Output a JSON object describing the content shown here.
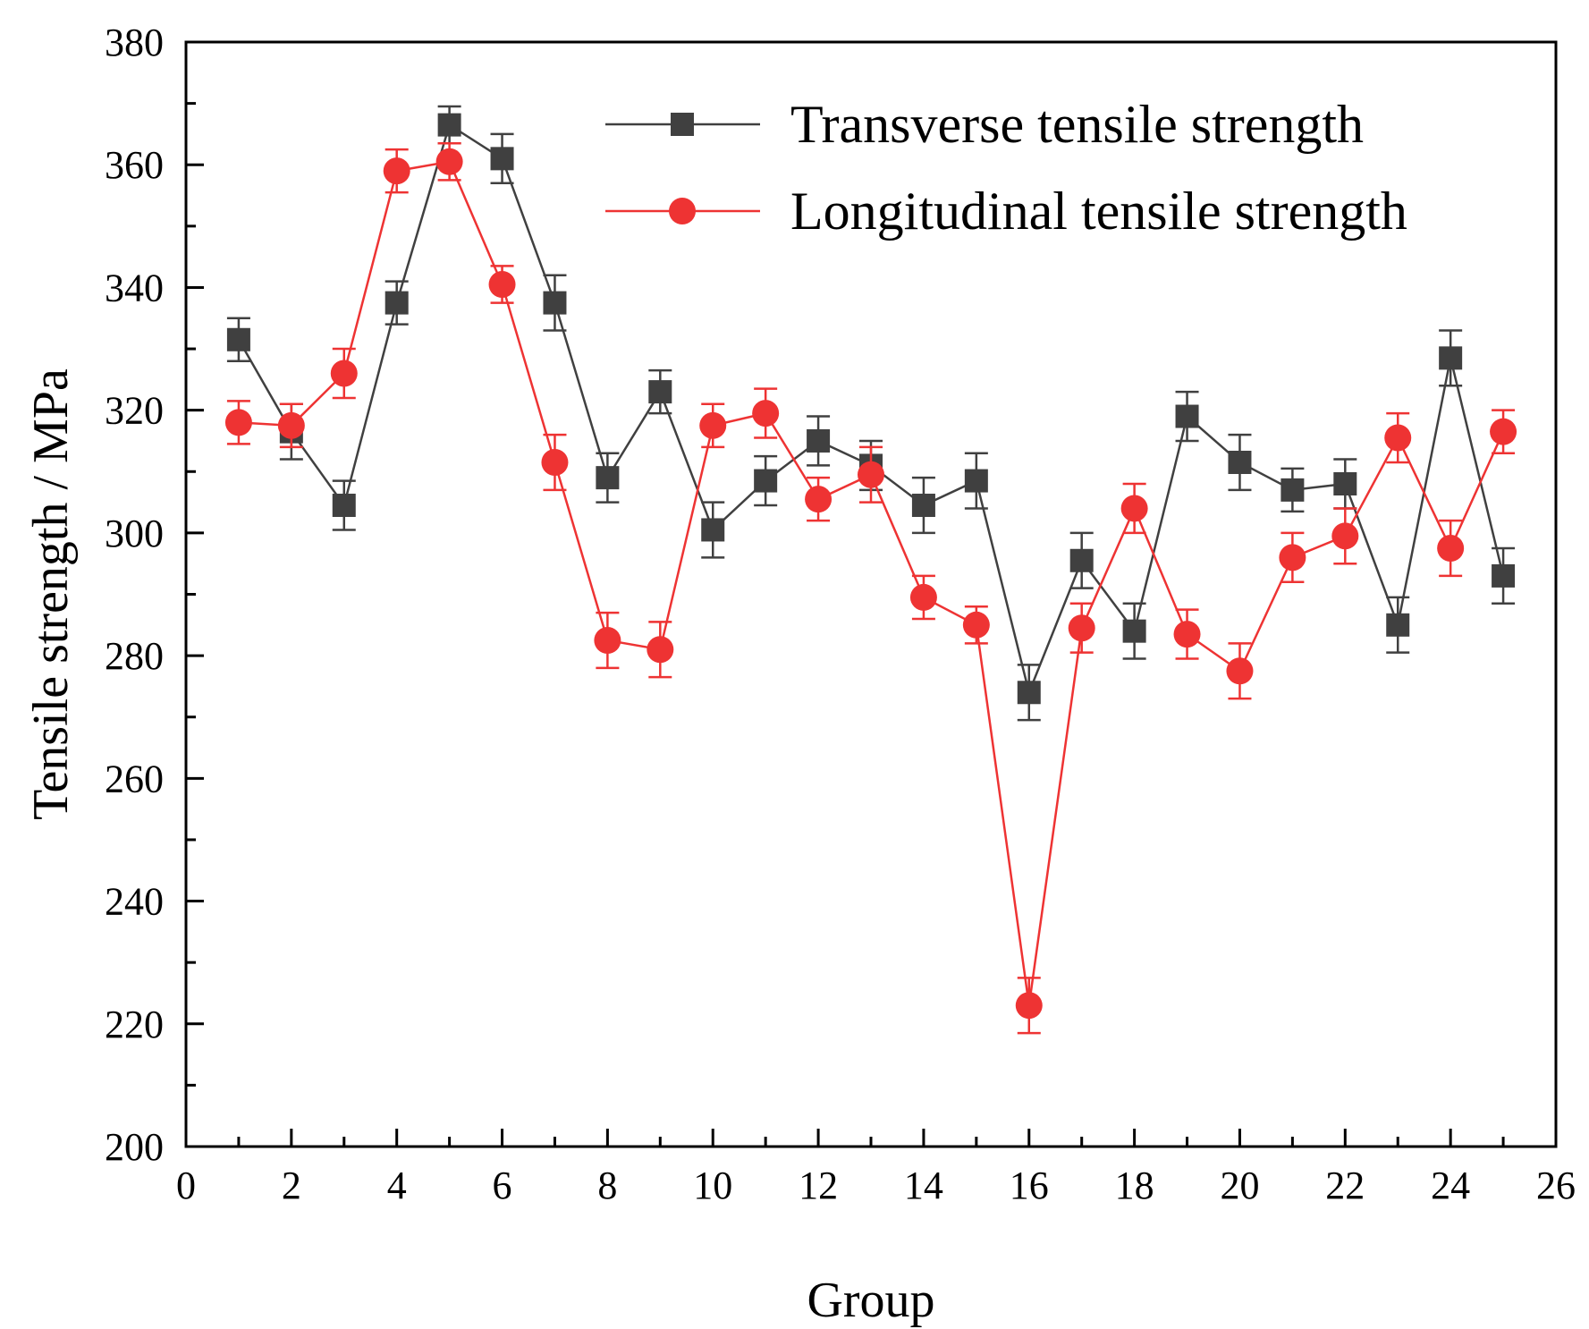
{
  "chart_data": {
    "type": "line",
    "xlabel": "Group",
    "ylabel": "Tensile strength / MPa",
    "xlim": [
      0,
      26
    ],
    "ylim": [
      200,
      380
    ],
    "x_major_ticks": [
      0,
      2,
      4,
      6,
      8,
      10,
      12,
      14,
      16,
      18,
      20,
      22,
      24,
      26
    ],
    "y_major_ticks": [
      200,
      220,
      240,
      260,
      280,
      300,
      320,
      340,
      360,
      380
    ],
    "x_tick_labels": [
      "0",
      "2",
      "4",
      "6",
      "8",
      "10",
      "12",
      "14",
      "16",
      "18",
      "20",
      "22",
      "24",
      "26"
    ],
    "y_tick_labels": [
      "200",
      "220",
      "240",
      "260",
      "280",
      "300",
      "320",
      "340",
      "360",
      "380"
    ],
    "grid": false,
    "legend_position": "top-right",
    "x": [
      1,
      2,
      3,
      4,
      5,
      6,
      7,
      8,
      9,
      10,
      11,
      12,
      13,
      14,
      15,
      16,
      17,
      18,
      19,
      20,
      21,
      22,
      23,
      24,
      25
    ],
    "series": [
      {
        "name": "Transverse tensile strength",
        "color": "#404040",
        "marker": "square",
        "values": [
          331.5,
          316.5,
          304.5,
          337.5,
          366.5,
          361,
          337.5,
          309,
          323,
          300.5,
          308.5,
          315,
          311,
          304.5,
          308.5,
          274,
          295.5,
          284,
          319,
          311.5,
          307,
          308,
          285,
          328.5,
          293
        ],
        "errors": [
          3.5,
          4.5,
          4,
          3.5,
          3,
          4,
          4.5,
          4,
          3.5,
          4.5,
          4,
          4,
          4,
          4.5,
          4.5,
          4.5,
          4.5,
          4.5,
          4,
          4.5,
          3.5,
          4,
          4.5,
          4.5,
          4.5
        ]
      },
      {
        "name": "Longitudinal tensile strength",
        "color": "#ee3333",
        "marker": "circle",
        "values": [
          318,
          317.5,
          326,
          359,
          360.5,
          340.5,
          311.5,
          282.5,
          281,
          317.5,
          319.5,
          305.5,
          309.5,
          289.5,
          285,
          223,
          284.5,
          304,
          283.5,
          277.5,
          296,
          299.5,
          315.5,
          297.5,
          316.5
        ],
        "errors": [
          3.5,
          3.5,
          4,
          3.5,
          3,
          3,
          4.5,
          4.5,
          4.5,
          3.5,
          4,
          3.5,
          4.5,
          3.5,
          3,
          4.5,
          4,
          4,
          4,
          4.5,
          4,
          4.5,
          4,
          4.5,
          3.5
        ]
      }
    ]
  }
}
